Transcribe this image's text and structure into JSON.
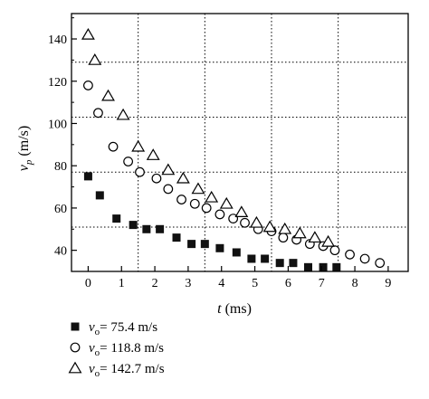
{
  "chart_data": {
    "type": "scatter",
    "title": "",
    "xlabel": {
      "var": "t",
      "unit": " (ms)"
    },
    "ylabel": {
      "var": "v",
      "sub": "p",
      "unit": " (m/s)"
    },
    "xlim": [
      -0.5,
      9.6
    ],
    "ylim": [
      30,
      152
    ],
    "xticks": [
      0,
      1,
      2,
      3,
      4,
      5,
      6,
      7,
      8,
      9
    ],
    "yticks": [
      40,
      60,
      80,
      100,
      120,
      140
    ],
    "grid": "dotted",
    "grid_x": [
      1.5,
      3.5,
      5.5,
      7.5
    ],
    "grid_y": [
      51,
      77,
      103,
      129
    ],
    "legend_position": "below-left",
    "series": [
      {
        "name": "75.4 m/s",
        "label_var": "v",
        "label_sub": "o",
        "label_eq": "= 75.4 m/s",
        "marker": "filled-square",
        "x": [
          0.0,
          0.35,
          0.85,
          1.35,
          1.75,
          2.15,
          2.65,
          3.1,
          3.5,
          3.95,
          4.45,
          4.9,
          5.3,
          5.75,
          6.15,
          6.6,
          7.05,
          7.45
        ],
        "y": [
          75,
          66,
          55,
          52,
          50,
          50,
          46,
          43,
          43,
          41,
          39,
          36,
          36,
          34,
          34,
          32,
          32,
          32
        ]
      },
      {
        "name": "118.8 m/s",
        "label_var": "v",
        "label_sub": "o",
        "label_eq": "= 118.8 m/s",
        "marker": "open-circle",
        "x": [
          0.0,
          0.3,
          0.75,
          1.2,
          1.55,
          2.05,
          2.4,
          2.8,
          3.2,
          3.55,
          3.95,
          4.35,
          4.7,
          5.1,
          5.5,
          5.85,
          6.25,
          6.65,
          7.05,
          7.4,
          7.85,
          8.3,
          8.75
        ],
        "y": [
          118,
          105,
          89,
          82,
          77,
          74,
          69,
          64,
          62,
          60,
          57,
          55,
          53,
          50,
          49,
          46,
          45,
          43,
          42,
          40,
          38,
          36,
          34
        ]
      },
      {
        "name": "142.7 m/s",
        "label_var": "v",
        "label_sub": "o",
        "label_eq": "= 142.7 m/s",
        "marker": "open-triangle",
        "x": [
          0.0,
          0.2,
          0.6,
          1.05,
          1.5,
          1.95,
          2.4,
          2.85,
          3.3,
          3.7,
          4.15,
          4.6,
          5.05,
          5.45,
          5.9,
          6.35,
          6.8,
          7.2
        ],
        "y": [
          142,
          130,
          113,
          104,
          89,
          85,
          78,
          74,
          69,
          65,
          62,
          58,
          53,
          51,
          50,
          48,
          46,
          44
        ]
      }
    ]
  }
}
